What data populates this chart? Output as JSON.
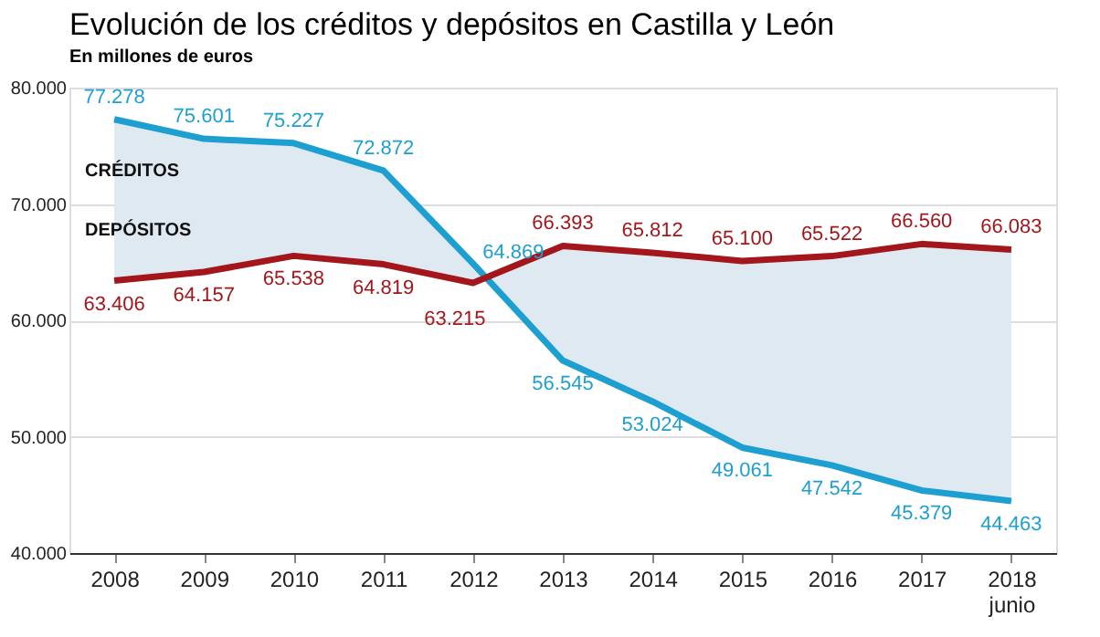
{
  "chart_data": {
    "type": "line",
    "title": "Evolución de los créditos y depósitos en Castilla y León",
    "subtitle": "En millones de euros",
    "categories": [
      "2008",
      "2009",
      "2010",
      "2011",
      "2012",
      "2013",
      "2014",
      "2015",
      "2016",
      "2017",
      "2018\njunio"
    ],
    "series": [
      {
        "name": "CRÉDITOS",
        "color": "#1e9fd2",
        "values": [
          77278,
          75601,
          75227,
          72872,
          64869,
          56545,
          53024,
          49061,
          47542,
          45379,
          44463
        ],
        "value_labels": [
          "77.278",
          "75.601",
          "75.227",
          "72.872",
          "64.869",
          "56.545",
          "53.024",
          "49.061",
          "47.542",
          "45.379",
          "44.463"
        ],
        "lower": [
          63406,
          64157,
          65538,
          64819,
          63215,
          66393,
          65812,
          65100,
          65522,
          66560,
          66083
        ],
        "upper": [
          77278,
          75601,
          75227,
          72872,
          64869,
          56545,
          53024,
          49061,
          47542,
          45379,
          44463
        ]
      },
      {
        "name": "DEPÓSITOS",
        "color": "#a3161b",
        "values": [
          63406,
          64157,
          65538,
          64819,
          63215,
          66393,
          65812,
          65100,
          65522,
          66560,
          66083
        ],
        "value_labels": [
          "63.406",
          "64.157",
          "65.538",
          "64.819",
          "63.215",
          "66.393",
          "65.812",
          "65.100",
          "65.522",
          "66.560",
          "66.083"
        ]
      }
    ],
    "ylim": [
      40000,
      80000
    ],
    "yticks": [
      {
        "value": 40000,
        "label": "40.000"
      },
      {
        "value": 50000,
        "label": "50.000"
      },
      {
        "value": 60000,
        "label": "60.000"
      },
      {
        "value": 70000,
        "label": "70.000"
      },
      {
        "value": 80000,
        "label": "80.000"
      }
    ],
    "grid": "y",
    "marker": "none",
    "line_style": "solid"
  }
}
